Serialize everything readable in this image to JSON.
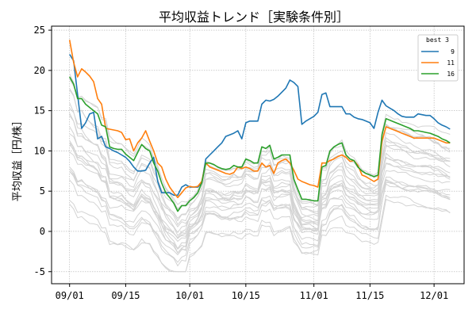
{
  "chart_data": {
    "type": "line",
    "title": "平均収益トレンド［実験条件別］",
    "ylabel": "平均収益［円/株］",
    "xlabel": "",
    "ylim": [
      -6.5,
      25.5
    ],
    "yticks": [
      -5,
      0,
      5,
      10,
      15,
      20,
      25
    ],
    "xticks": [
      {
        "label": "09/01",
        "day": 0
      },
      {
        "label": "09/15",
        "day": 14
      },
      {
        "label": "10/01",
        "day": 30
      },
      {
        "label": "10/15",
        "day": 44
      },
      {
        "label": "11/01",
        "day": 61
      },
      {
        "label": "11/15",
        "day": 75
      },
      {
        "label": "12/01",
        "day": 91
      }
    ],
    "grid": true,
    "legend": {
      "title": "best 3",
      "placement": "top-right"
    },
    "series": [
      {
        "name": "9",
        "color": "#1f77b4",
        "highlight": true,
        "x": [
          0,
          1,
          2,
          3,
          4,
          5,
          6,
          7,
          8,
          9,
          10,
          11,
          12,
          13,
          14,
          15,
          16,
          17,
          18,
          19,
          20,
          21,
          22,
          23,
          24,
          25,
          26,
          27,
          28,
          29,
          30,
          31,
          32,
          33,
          34,
          35,
          36,
          37,
          38,
          39,
          40,
          41,
          42,
          43,
          44,
          45,
          46,
          47,
          48,
          49,
          50,
          51,
          52,
          53,
          54,
          55,
          56,
          57,
          58,
          59,
          60,
          61,
          62,
          63,
          64,
          65,
          66,
          67,
          68,
          69,
          70,
          71,
          72,
          73,
          74,
          75,
          76,
          77,
          78,
          79,
          80,
          81,
          82,
          83,
          84,
          85,
          86,
          87,
          88,
          89,
          90,
          91,
          92,
          93,
          94,
          95
        ],
        "y": [
          22.0,
          21.2,
          17.0,
          12.8,
          13.5,
          14.6,
          14.8,
          11.5,
          11.8,
          10.5,
          10.3,
          10.0,
          9.8,
          9.5,
          9.2,
          8.7,
          8.0,
          7.5,
          7.5,
          7.6,
          8.5,
          9.2,
          6.2,
          4.8,
          4.8,
          4.8,
          4.5,
          4.5,
          5.5,
          5.8,
          5.5,
          5.5,
          5.5,
          6.0,
          9.0,
          9.5,
          10.0,
          10.5,
          11.0,
          11.8,
          12.0,
          12.2,
          12.5,
          11.5,
          13.5,
          13.7,
          13.7,
          13.7,
          15.8,
          16.3,
          16.2,
          16.4,
          16.8,
          17.3,
          17.8,
          18.8,
          18.5,
          18.0,
          13.3,
          13.7,
          14.0,
          14.3,
          14.8,
          17.0,
          17.2,
          15.5,
          15.5,
          15.5,
          15.5,
          14.6,
          14.6,
          14.2,
          14.0,
          13.9,
          13.7,
          13.5,
          12.8,
          14.8,
          16.3,
          15.6,
          15.3,
          15.0,
          14.6,
          14.3,
          14.2,
          14.2,
          14.2,
          14.6,
          14.5,
          14.4,
          14.4,
          14.0,
          13.5,
          13.2,
          13.0,
          12.7
        ]
      },
      {
        "name": "11",
        "color": "#ff7f0e",
        "highlight": true,
        "x": [
          0,
          1,
          2,
          3,
          4,
          5,
          6,
          7,
          8,
          9,
          10,
          11,
          12,
          13,
          14,
          15,
          16,
          17,
          18,
          19,
          20,
          21,
          22,
          23,
          24,
          25,
          26,
          27,
          28,
          29,
          30,
          31,
          32,
          33,
          34,
          35,
          36,
          37,
          38,
          39,
          40,
          41,
          42,
          43,
          44,
          45,
          46,
          47,
          48,
          49,
          50,
          51,
          52,
          53,
          54,
          55,
          56,
          57,
          58,
          59,
          60,
          61,
          62,
          63,
          64,
          65,
          66,
          67,
          68,
          69,
          70,
          71,
          72,
          73,
          74,
          75,
          76,
          77,
          78,
          79,
          80,
          81,
          82,
          83,
          84,
          85,
          86,
          87,
          88,
          89,
          90,
          91,
          92,
          93,
          94,
          95
        ],
        "y": [
          23.8,
          21.0,
          19.2,
          20.2,
          19.8,
          19.3,
          18.6,
          16.5,
          15.8,
          12.8,
          12.7,
          12.6,
          12.5,
          12.3,
          11.4,
          11.5,
          10.0,
          11.0,
          11.6,
          12.5,
          11.2,
          10.0,
          8.5,
          8.0,
          6.5,
          5.5,
          4.8,
          4.2,
          4.8,
          5.4,
          5.6,
          5.5,
          5.6,
          6.2,
          8.5,
          8.0,
          7.8,
          7.6,
          7.4,
          7.2,
          7.1,
          7.3,
          8.0,
          7.8,
          8.0,
          7.8,
          7.5,
          7.5,
          8.5,
          8.0,
          8.2,
          7.2,
          8.5,
          8.8,
          9.0,
          8.5,
          7.6,
          6.5,
          6.2,
          6.0,
          5.8,
          5.7,
          5.5,
          8.5,
          8.5,
          8.8,
          9.0,
          9.3,
          9.5,
          9.2,
          8.7,
          8.8,
          8.2,
          7.0,
          6.8,
          6.5,
          6.2,
          6.5,
          11.2,
          13.0,
          12.8,
          12.6,
          12.4,
          12.2,
          12.0,
          11.8,
          11.6,
          11.6,
          11.6,
          11.6,
          11.6,
          11.6,
          11.4,
          11.2,
          11.0,
          11.0
        ]
      },
      {
        "name": "16",
        "color": "#2ca02c",
        "highlight": true,
        "x": [
          0,
          1,
          2,
          3,
          4,
          5,
          6,
          7,
          8,
          9,
          10,
          11,
          12,
          13,
          14,
          15,
          16,
          17,
          18,
          19,
          20,
          21,
          22,
          23,
          24,
          25,
          26,
          27,
          28,
          29,
          30,
          31,
          32,
          33,
          34,
          35,
          36,
          37,
          38,
          39,
          40,
          41,
          42,
          43,
          44,
          45,
          46,
          47,
          48,
          49,
          50,
          51,
          52,
          53,
          54,
          55,
          56,
          57,
          58,
          59,
          60,
          61,
          62,
          63,
          64,
          65,
          66,
          67,
          68,
          69,
          70,
          71,
          72,
          73,
          74,
          75,
          76,
          77,
          78,
          79,
          80,
          81,
          82,
          83,
          84,
          85,
          86,
          87,
          88,
          89,
          90,
          91,
          92,
          93,
          94,
          95
        ],
        "y": [
          19.2,
          18.3,
          16.5,
          16.5,
          15.8,
          15.4,
          15.0,
          14.6,
          13.2,
          13.0,
          10.5,
          10.3,
          10.2,
          10.2,
          9.6,
          9.2,
          8.8,
          9.8,
          10.8,
          10.3,
          10.0,
          8.5,
          7.5,
          6.0,
          4.8,
          4.2,
          3.5,
          2.5,
          3.2,
          3.2,
          3.8,
          4.2,
          4.8,
          6.0,
          8.5,
          8.5,
          8.3,
          8.0,
          7.8,
          7.7,
          7.8,
          8.2,
          8.0,
          8.0,
          9.0,
          8.8,
          8.5,
          8.5,
          10.5,
          10.3,
          10.7,
          9.0,
          9.2,
          9.5,
          9.5,
          9.5,
          6.5,
          5.2,
          4.0,
          4.0,
          3.9,
          3.8,
          3.8,
          8.0,
          8.2,
          10.0,
          10.5,
          10.8,
          11.0,
          9.5,
          9.0,
          8.8,
          8.0,
          7.5,
          7.2,
          7.0,
          6.8,
          7.0,
          12.0,
          14.0,
          13.8,
          13.6,
          13.4,
          13.2,
          13.0,
          12.8,
          12.5,
          12.5,
          12.4,
          12.3,
          12.2,
          12.0,
          11.8,
          11.5,
          11.3,
          11.0
        ]
      }
    ],
    "background_series_count": 22
  }
}
